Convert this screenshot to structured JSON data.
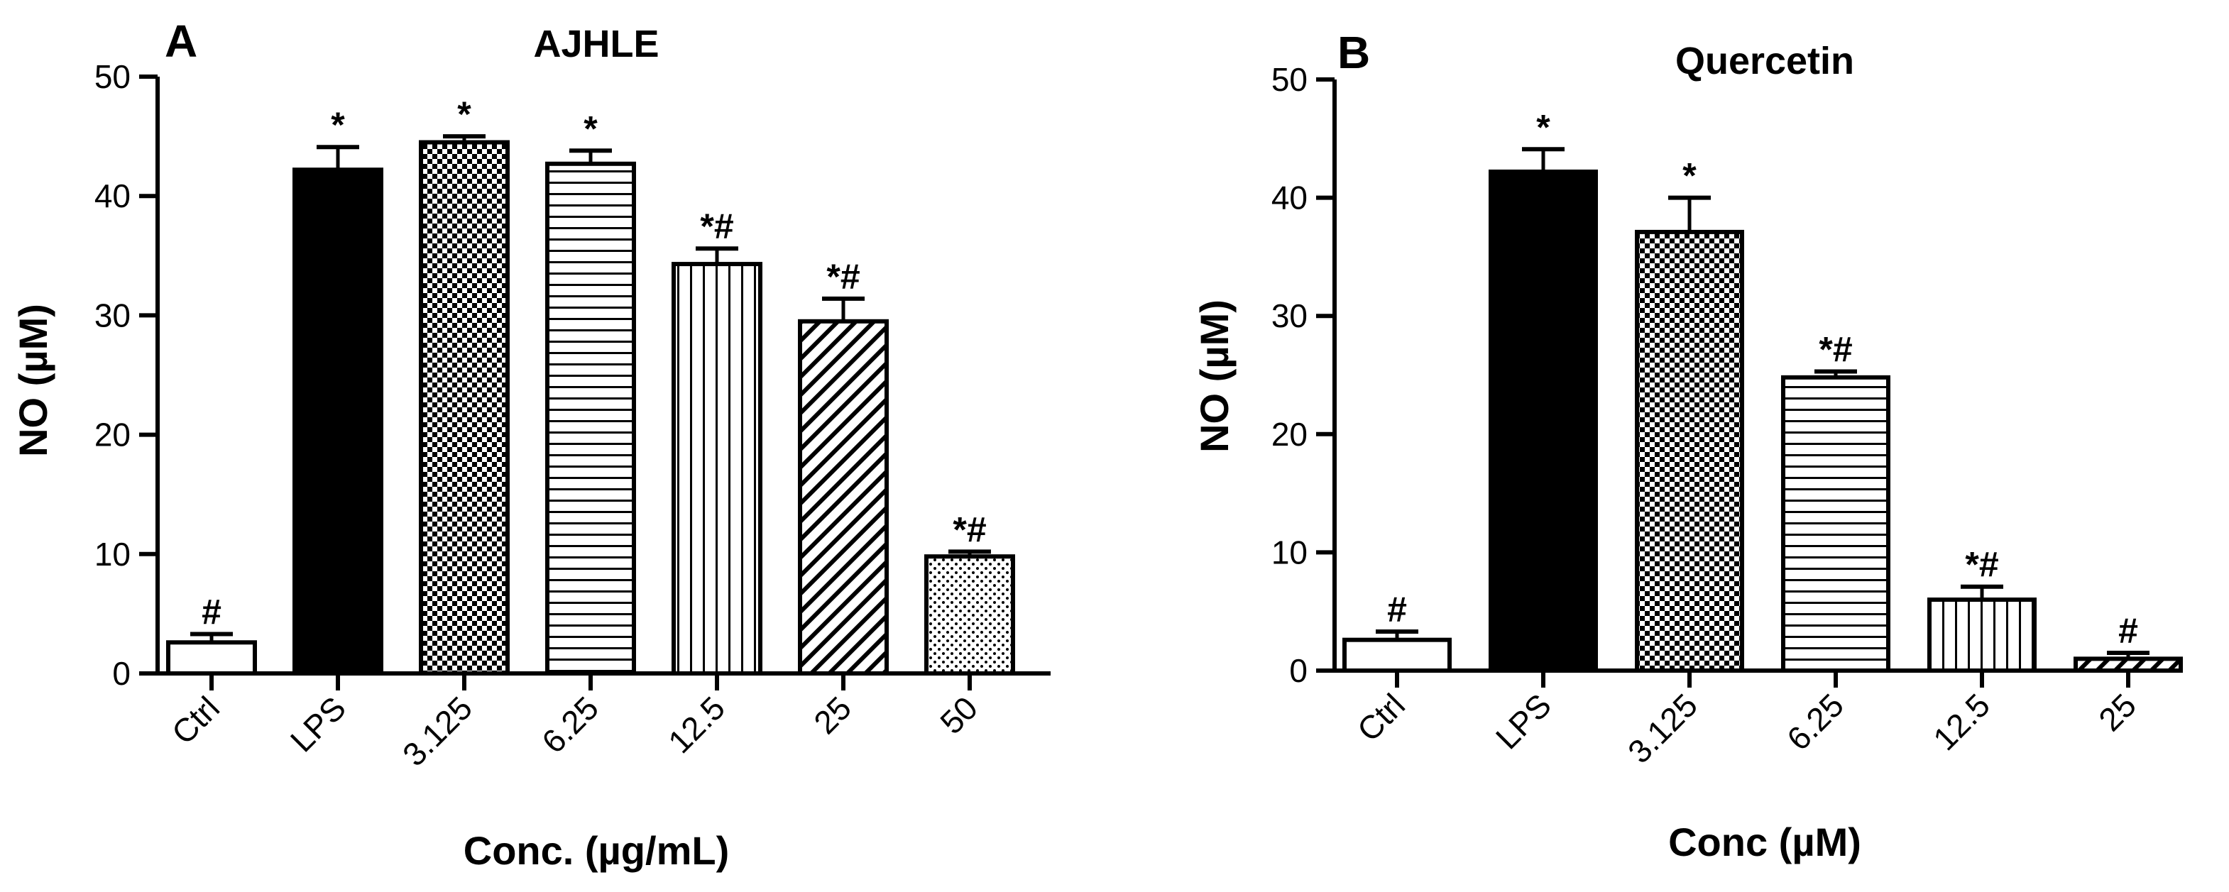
{
  "chart_data": [
    {
      "type": "bar",
      "panel_label": "A",
      "title": "AJHLE",
      "xlabel": "Conc. (µg/mL)",
      "ylabel": "NO (µM)",
      "ylim": [
        0,
        50
      ],
      "yticks": [
        "0",
        "10",
        "20",
        "30",
        "40",
        "50"
      ],
      "grid": false,
      "categories": [
        "Ctrl",
        "LPS",
        "3.125",
        "6.25",
        "12.5",
        "25",
        "50"
      ],
      "values": [
        2.6,
        42.2,
        44.5,
        42.7,
        34.3,
        29.5,
        9.8
      ],
      "errors": [
        0.7,
        1.9,
        0.5,
        1.1,
        1.3,
        1.9,
        0.4
      ],
      "annotations": [
        "#",
        "*",
        "*",
        "*",
        "*#",
        "*#",
        "*#"
      ],
      "patterns": [
        "none",
        "solid",
        "checker",
        "hlines",
        "vlines",
        "diag",
        "dots"
      ]
    },
    {
      "type": "bar",
      "panel_label": "B",
      "title": "Quercetin",
      "xlabel": "Conc (µM)",
      "ylabel": "NO (µM)",
      "ylim": [
        0,
        50
      ],
      "yticks": [
        "0",
        "10",
        "20",
        "30",
        "40",
        "50"
      ],
      "grid": false,
      "categories": [
        "Ctrl",
        "LPS",
        "3.125",
        "6.25",
        "12.5",
        "25"
      ],
      "values": [
        2.6,
        42.2,
        37.1,
        24.8,
        6.0,
        1.0
      ],
      "errors": [
        0.7,
        1.9,
        2.9,
        0.5,
        1.1,
        0.5
      ],
      "annotations": [
        "#",
        "*",
        "*",
        "*#",
        "*#",
        "#"
      ],
      "patterns": [
        "none",
        "solid",
        "checker",
        "hlines",
        "vlines",
        "diag"
      ]
    }
  ]
}
